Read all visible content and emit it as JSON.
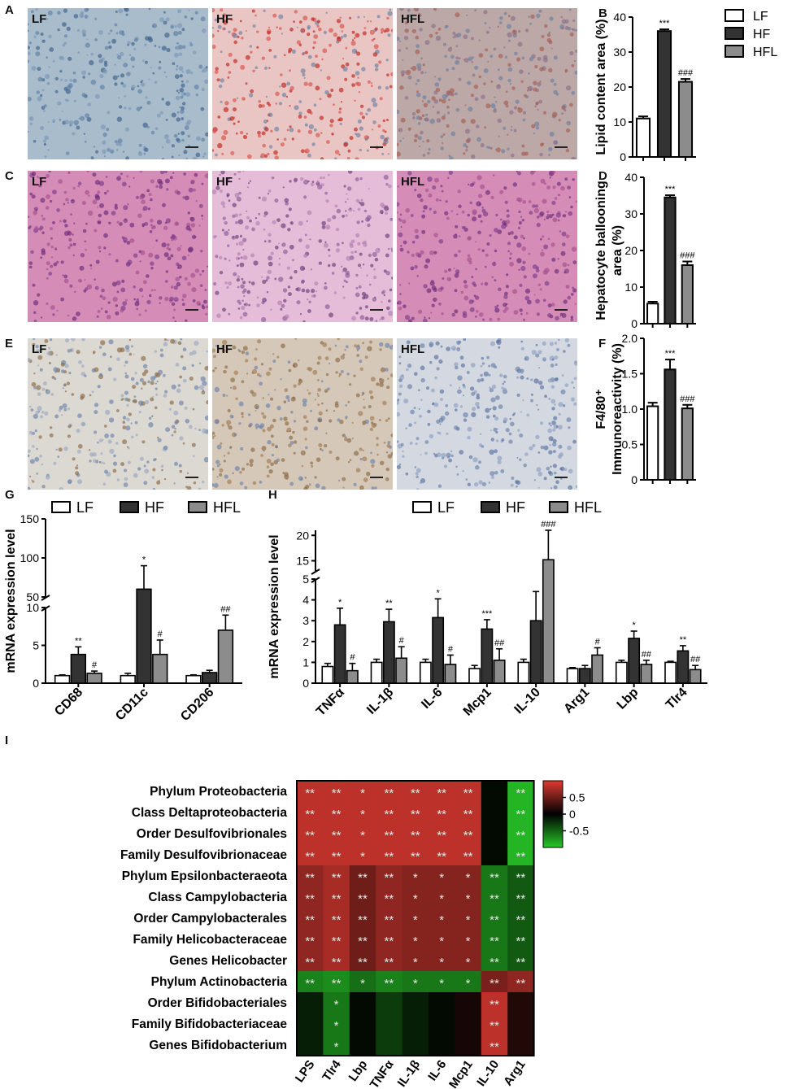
{
  "panel_letters": {
    "a": "A",
    "b": "B",
    "c": "C",
    "d": "D",
    "e": "E",
    "f": "F",
    "g": "G",
    "h": "H",
    "i": "I"
  },
  "histology": {
    "group_labels": [
      "LF",
      "HF",
      "HFL"
    ],
    "rows": [
      {
        "name": "oil-red-o",
        "tiles": [
          {
            "bg": "#a9bccc"
          },
          {
            "bg": "#e9c6c4"
          },
          {
            "bg": "#bca8a6"
          }
        ]
      },
      {
        "name": "he",
        "tiles": [
          {
            "bg": "#d58cb6"
          },
          {
            "bg": "#e6bdd8"
          },
          {
            "bg": "#d58cb6"
          }
        ]
      },
      {
        "name": "f4-80",
        "tiles": [
          {
            "bg": "#dcd8d2"
          },
          {
            "bg": "#d6c8b8"
          },
          {
            "bg": "#d4d8e0"
          }
        ]
      }
    ]
  },
  "legend": {
    "lf": "LF",
    "hf": "HF",
    "hfl": "HFL"
  },
  "colors": {
    "lf": "#ffffff",
    "hf": "#333333",
    "hfl": "#8c8c8c"
  },
  "chart_data": [
    {
      "id": "B",
      "type": "bar",
      "ylabel": "Lipid content area (%)",
      "ylim": [
        0,
        40
      ],
      "yticks": [
        "0",
        "10",
        "20",
        "30",
        "40"
      ],
      "categories": [
        "LF",
        "HF",
        "HFL"
      ],
      "values": [
        11,
        36,
        21.5
      ],
      "errors": [
        0.6,
        0.5,
        0.8
      ],
      "annotations": [
        "",
        "***",
        "###"
      ]
    },
    {
      "id": "D",
      "type": "bar",
      "ylabel_lines": [
        "Hepatocyte ballooning",
        "area (%)"
      ],
      "ylim": [
        0,
        40
      ],
      "yticks": [
        "0",
        "10",
        "20",
        "30",
        "40"
      ],
      "categories": [
        "LF",
        "HF",
        "HFL"
      ],
      "values": [
        5.5,
        34.5,
        16
      ],
      "errors": [
        0.5,
        0.6,
        1.0
      ],
      "annotations": [
        "",
        "***",
        "###"
      ]
    },
    {
      "id": "F",
      "type": "bar",
      "ylabel_lines": [
        "F4/80⁺",
        "Immunoreactivity (%)"
      ],
      "ylim": [
        0,
        2.0
      ],
      "yticks": [
        "0",
        "0.5",
        "1.0",
        "1.5",
        "2.0"
      ],
      "categories": [
        "LF",
        "HF",
        "HFL"
      ],
      "values": [
        1.04,
        1.56,
        1.01
      ],
      "errors": [
        0.05,
        0.14,
        0.05
      ],
      "annotations": [
        "",
        "***",
        "###"
      ]
    },
    {
      "id": "G",
      "type": "bar",
      "ylabel": "mRNA expression level",
      "yticks_low": [
        "0",
        "5",
        "10"
      ],
      "yticks_high": [
        "50",
        "100",
        "150"
      ],
      "categories": [
        "CD68",
        "CD11c",
        "CD206"
      ],
      "series": [
        {
          "name": "LF",
          "values": [
            1.0,
            1.0,
            1.0
          ],
          "errors": [
            0.1,
            0.3,
            0.1
          ]
        },
        {
          "name": "HF",
          "values": [
            3.8,
            60,
            1.4
          ],
          "errors": [
            1.0,
            30,
            0.3
          ]
        },
        {
          "name": "HFL",
          "values": [
            1.3,
            3.8,
            7.0
          ],
          "errors": [
            0.3,
            1.9,
            2.0
          ]
        }
      ],
      "annotations": [
        [
          "",
          "**",
          "#"
        ],
        [
          "",
          "*",
          "#"
        ],
        [
          "",
          "",
          "##"
        ]
      ]
    },
    {
      "id": "H",
      "type": "bar",
      "ylabel": "mRNA expression level",
      "yticks_low": [
        "0",
        "1",
        "2",
        "3",
        "4",
        "5"
      ],
      "yticks_high": [
        "15",
        "20"
      ],
      "categories": [
        "TNFα",
        "IL-1β",
        "IL-6",
        "Mcp1",
        "IL-10",
        "Arg1",
        "Lbp",
        "Tlr4"
      ],
      "series": [
        {
          "name": "LF",
          "values": [
            0.8,
            1.0,
            1.0,
            0.7,
            1.0,
            0.7,
            1.0,
            1.0
          ],
          "errors": [
            0.15,
            0.15,
            0.15,
            0.15,
            0.15,
            0.05,
            0.1,
            0.05
          ]
        },
        {
          "name": "HF",
          "values": [
            2.8,
            2.95,
            3.15,
            2.6,
            3.0,
            0.7,
            2.15,
            1.55
          ],
          "errors": [
            0.8,
            0.6,
            0.9,
            0.45,
            1.4,
            0.15,
            0.35,
            0.25
          ]
        },
        {
          "name": "HFL",
          "values": [
            0.6,
            1.2,
            0.9,
            1.1,
            15.2,
            1.35,
            0.9,
            0.65
          ],
          "errors": [
            0.35,
            0.55,
            0.45,
            0.55,
            6.0,
            0.35,
            0.2,
            0.2
          ]
        }
      ],
      "annotations": [
        [
          "*",
          "#"
        ],
        [
          "**",
          "#"
        ],
        [
          "*",
          "#"
        ],
        [
          "***",
          "##"
        ],
        [
          "",
          "###"
        ],
        [
          "",
          "#"
        ],
        [
          "*",
          "##"
        ],
        [
          "**",
          "##"
        ]
      ]
    },
    {
      "id": "I",
      "type": "heatmap",
      "rows": [
        "Phylum Proteobacteria",
        "Class Deltaproteobacteria",
        "Order Desulfovibrionales",
        "Family Desulfovibrionaceae",
        "Phylum Epsilonbacteraeota",
        "Class Campylobacteria",
        "Order Campylobacterales",
        "Family Helicobacteraceae",
        "Genes Helicobacter",
        "Phylum Actinobacteria",
        "Order Bifidobacteriales",
        "Family Bifidobacteriaceae",
        "Genes Bifidobacterium"
      ],
      "columns": [
        "LPS",
        "Tlr4",
        "Lbp",
        "TNFα",
        "IL-1β",
        "IL-6",
        "Mcp1",
        "IL-10",
        "Arg1"
      ],
      "values": [
        [
          0.85,
          0.85,
          0.85,
          0.85,
          0.85,
          0.85,
          0.85,
          -0.05,
          -0.9
        ],
        [
          0.85,
          0.85,
          0.85,
          0.85,
          0.85,
          0.85,
          0.85,
          -0.05,
          -0.9
        ],
        [
          0.85,
          0.85,
          0.85,
          0.85,
          0.85,
          0.85,
          0.85,
          -0.05,
          -0.9
        ],
        [
          0.85,
          0.85,
          0.85,
          0.85,
          0.85,
          0.85,
          0.85,
          -0.05,
          -0.9
        ],
        [
          0.65,
          0.75,
          0.5,
          0.65,
          0.6,
          0.6,
          0.6,
          -0.6,
          -0.45
        ],
        [
          0.65,
          0.75,
          0.5,
          0.65,
          0.6,
          0.6,
          0.6,
          -0.6,
          -0.45
        ],
        [
          0.65,
          0.75,
          0.5,
          0.65,
          0.6,
          0.6,
          0.6,
          -0.6,
          -0.45
        ],
        [
          0.65,
          0.75,
          0.5,
          0.65,
          0.6,
          0.6,
          0.6,
          -0.6,
          -0.45
        ],
        [
          0.65,
          0.75,
          0.5,
          0.65,
          0.6,
          0.6,
          0.6,
          -0.6,
          -0.45
        ],
        [
          -0.65,
          -0.7,
          -0.55,
          -0.65,
          -0.6,
          -0.6,
          -0.6,
          0.55,
          0.65
        ],
        [
          -0.15,
          -0.6,
          -0.05,
          -0.3,
          -0.15,
          -0.05,
          0.1,
          0.85,
          0.15
        ],
        [
          -0.15,
          -0.6,
          -0.05,
          -0.3,
          -0.15,
          -0.05,
          0.1,
          0.85,
          0.15
        ],
        [
          -0.15,
          -0.6,
          -0.05,
          -0.3,
          -0.15,
          -0.05,
          0.1,
          0.85,
          0.15
        ]
      ],
      "stars": [
        [
          "**",
          "**",
          "*",
          "**",
          "**",
          "**",
          "**",
          "",
          "**"
        ],
        [
          "**",
          "**",
          "*",
          "**",
          "**",
          "**",
          "**",
          "",
          "**"
        ],
        [
          "**",
          "**",
          "*",
          "**",
          "**",
          "**",
          "**",
          "",
          "**"
        ],
        [
          "**",
          "**",
          "*",
          "**",
          "**",
          "**",
          "**",
          "",
          "**"
        ],
        [
          "**",
          "**",
          "**",
          "**",
          "*",
          "*",
          "*",
          "**",
          "**"
        ],
        [
          "**",
          "**",
          "**",
          "**",
          "*",
          "*",
          "*",
          "**",
          "**"
        ],
        [
          "**",
          "**",
          "**",
          "**",
          "*",
          "*",
          "*",
          "**",
          "**"
        ],
        [
          "**",
          "**",
          "**",
          "**",
          "*",
          "*",
          "*",
          "**",
          "**"
        ],
        [
          "**",
          "**",
          "**",
          "**",
          "*",
          "*",
          "*",
          "**",
          "**"
        ],
        [
          "**",
          "**",
          "*",
          "**",
          "*",
          "*",
          "*",
          "**",
          "**"
        ],
        [
          "",
          "*",
          "",
          "",
          "",
          "",
          "",
          "**",
          ""
        ],
        [
          "",
          "*",
          "",
          "",
          "",
          "",
          "",
          "**",
          ""
        ],
        [
          "",
          "*",
          "",
          "",
          "",
          "",
          "",
          "**",
          ""
        ]
      ],
      "colorbar_ticks": [
        "0.5",
        "0",
        "-0.5"
      ],
      "range": [
        -1,
        1
      ]
    }
  ]
}
